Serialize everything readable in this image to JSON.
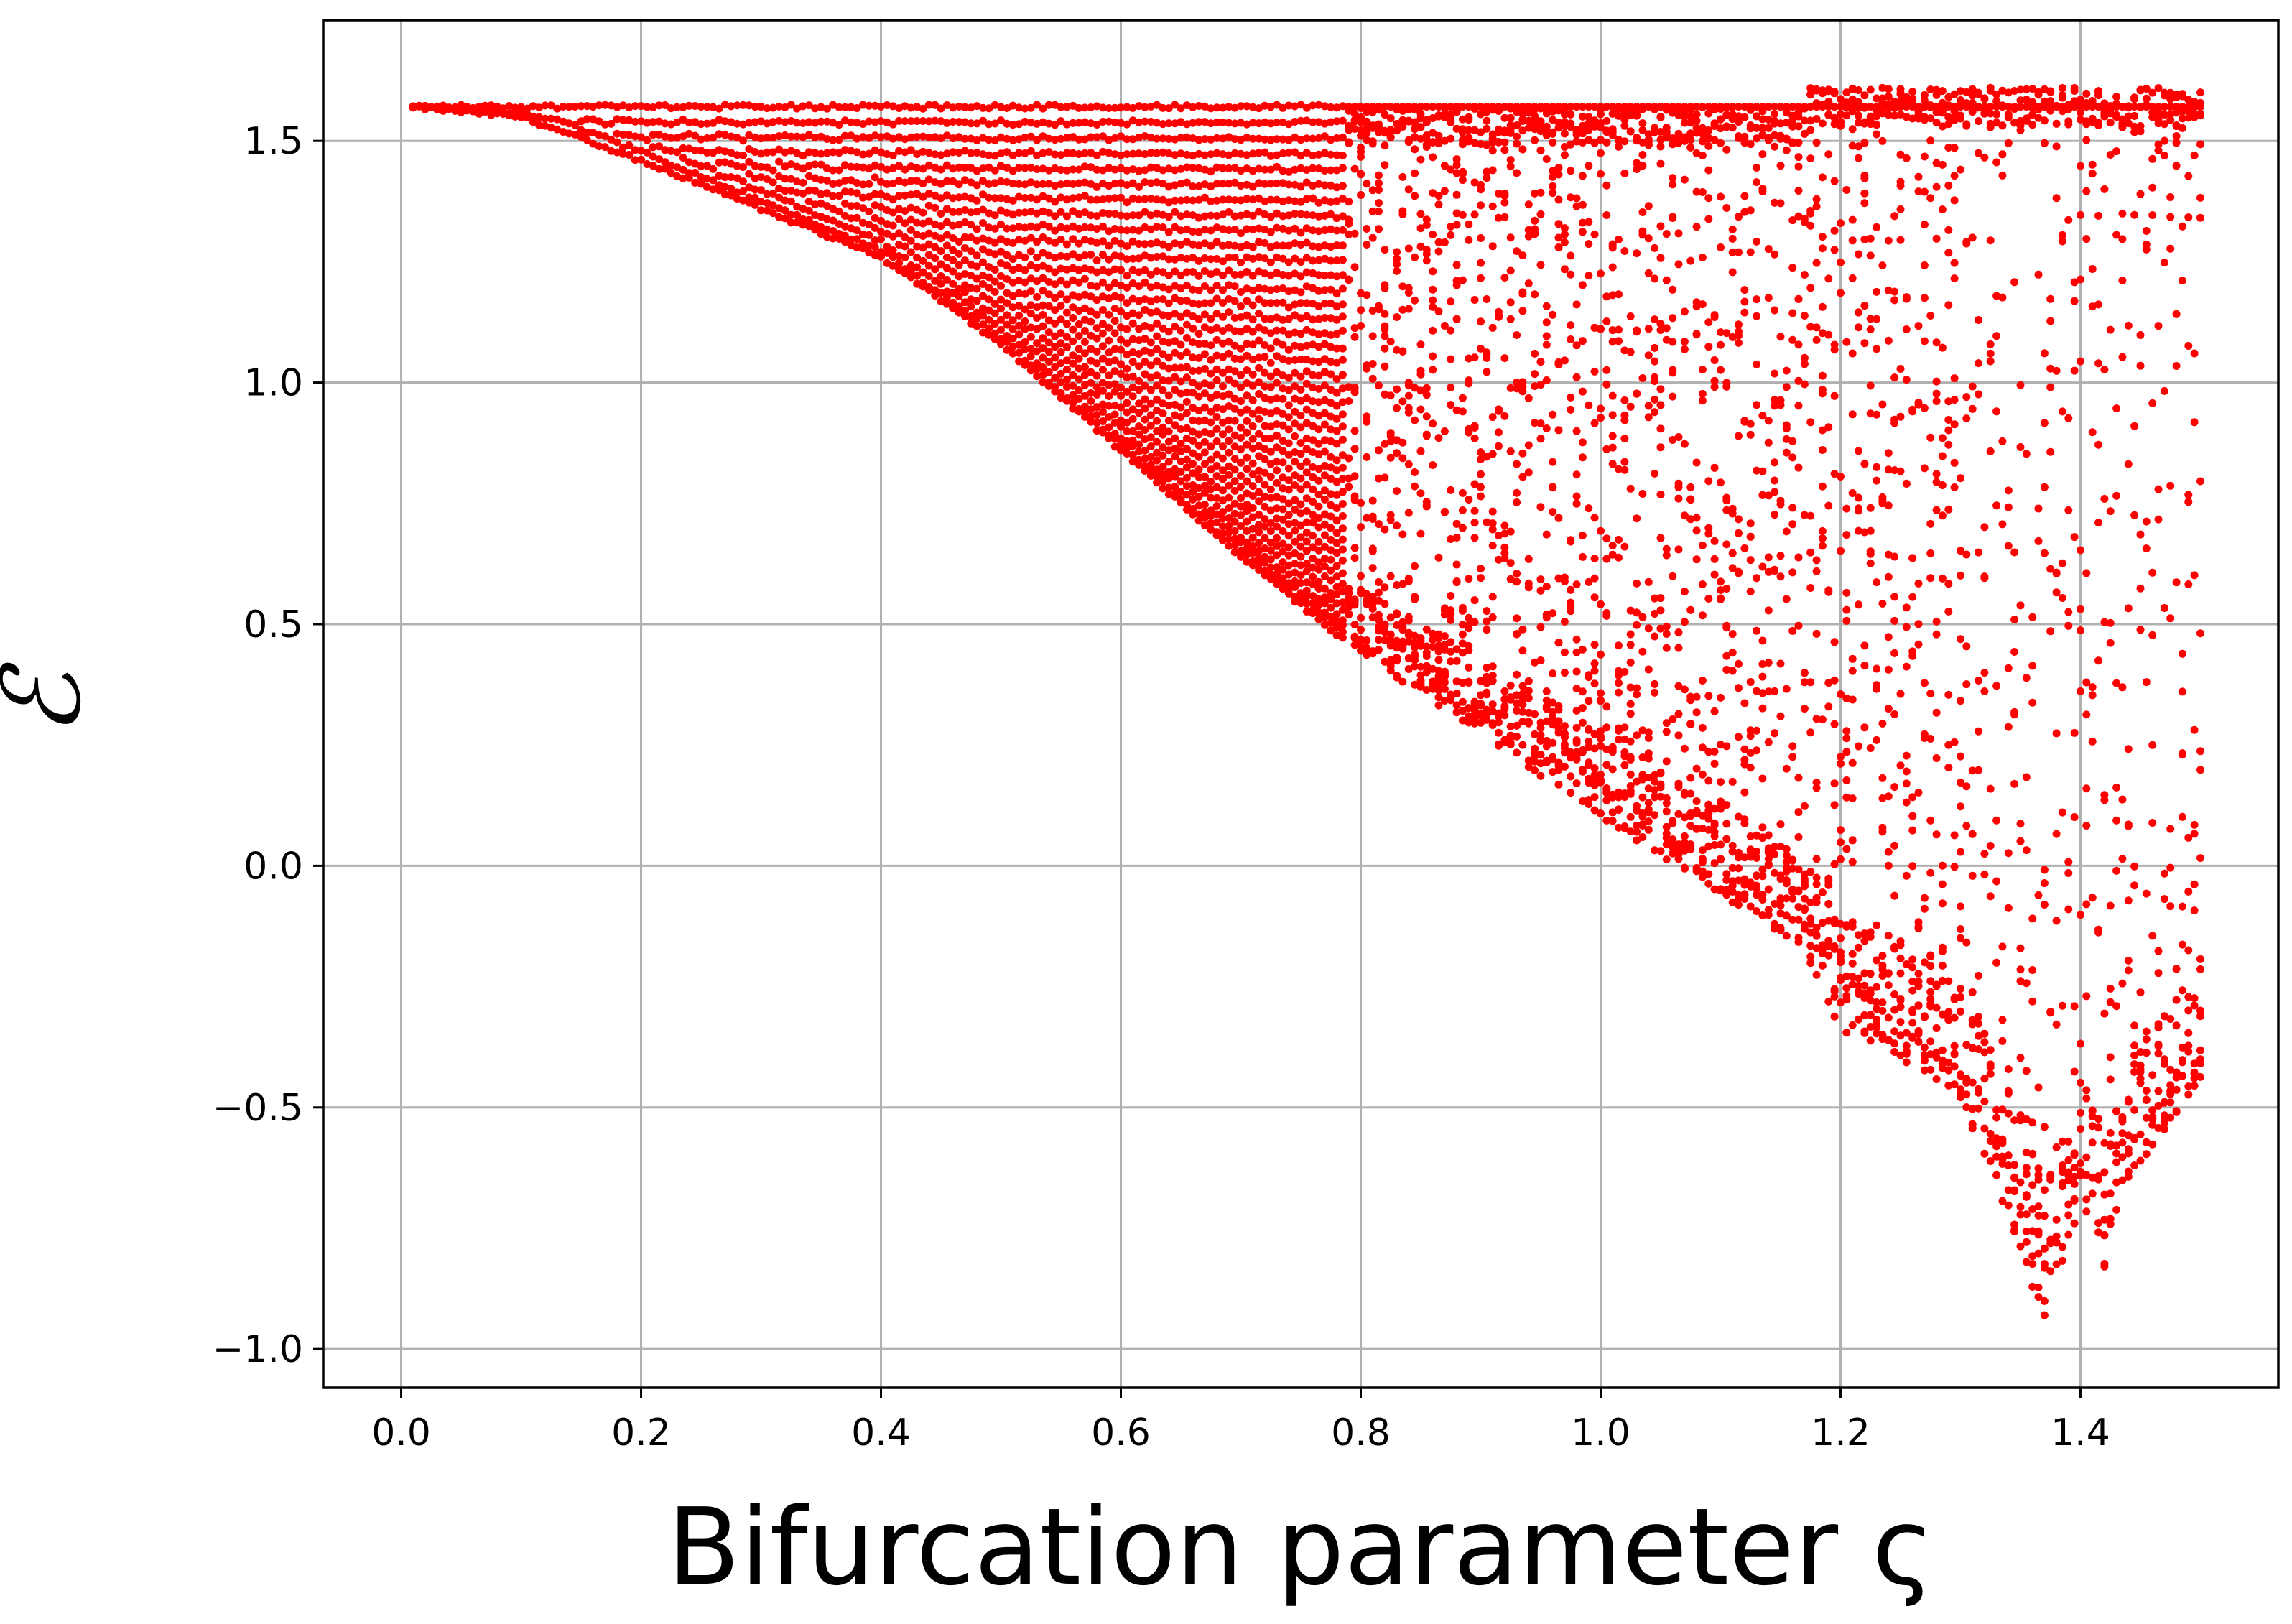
{
  "chart_data": {
    "type": "scatter",
    "title": "",
    "xlabel": "Bifurcation parameter ς",
    "ylabel": "ℰ",
    "xlim": [
      -0.065,
      1.565
    ],
    "ylim": [
      -1.08,
      1.75
    ],
    "xticks": [
      "0.0",
      "0.2",
      "0.4",
      "0.6",
      "0.8",
      "1.0",
      "1.2",
      "1.4"
    ],
    "xtick_values": [
      0.0,
      0.2,
      0.4,
      0.6,
      0.8,
      1.0,
      1.2,
      1.4
    ],
    "yticks": [
      "−1.0",
      "−0.5",
      "0.0",
      "0.5",
      "1.0",
      "1.5"
    ],
    "ytick_values": [
      -1.0,
      -0.5,
      0.0,
      0.5,
      1.0,
      1.5
    ],
    "grid": true,
    "marker_color": "#ff0000",
    "series": [
      {
        "x_range": [
          0.01,
          1.5
        ],
        "x_step": 0.005,
        "upper_value": 1.5708,
        "lower_envelope": {
          "x": [
            0.01,
            0.1,
            0.2,
            0.3,
            0.4,
            0.5,
            0.6,
            0.7,
            0.8,
            0.9,
            1.0,
            1.1,
            1.17,
            1.2,
            1.25,
            1.3,
            1.35,
            1.37,
            1.4,
            1.42,
            1.45,
            1.5
          ],
          "y_min": [
            1.57,
            1.55,
            1.46,
            1.36,
            1.26,
            1.08,
            0.86,
            0.64,
            0.44,
            0.27,
            0.1,
            -0.06,
            -0.18,
            -0.34,
            -0.4,
            -0.48,
            -0.8,
            -0.96,
            -0.7,
            -0.84,
            -0.62,
            -0.44
          ]
        },
        "chaotic_onset_x": 0.79,
        "top_spread_onset_x": 1.17,
        "top_spread_max": 1.61
      }
    ]
  }
}
